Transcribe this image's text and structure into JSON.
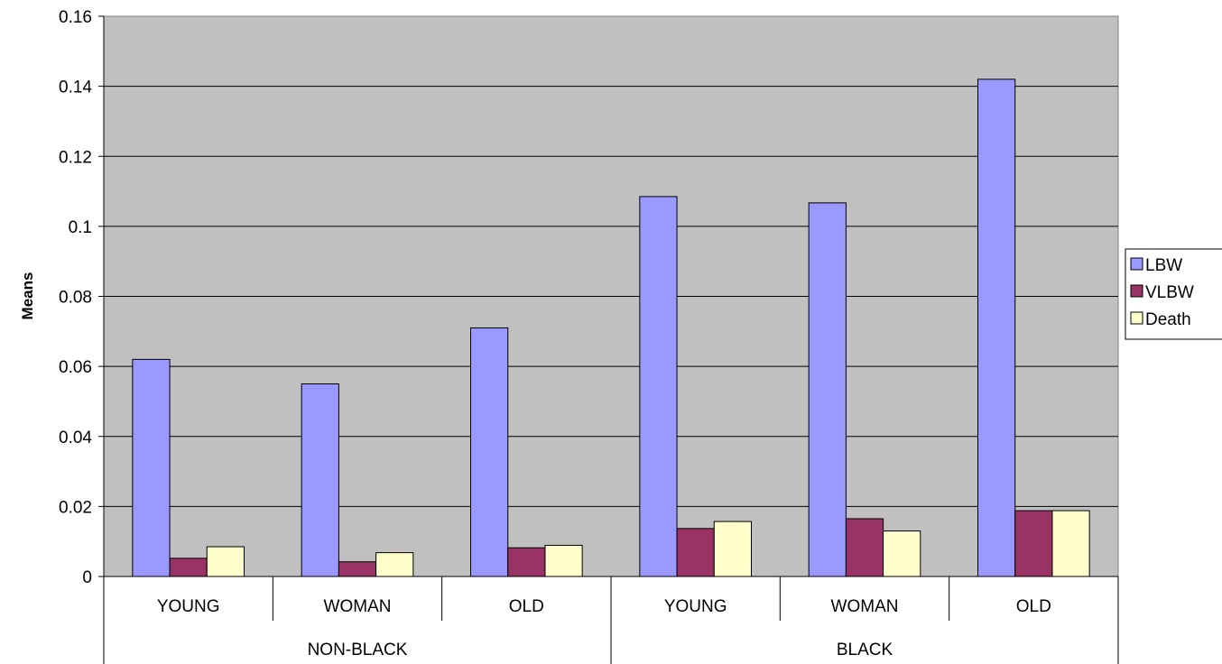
{
  "chart_data": {
    "type": "bar",
    "title": "",
    "xlabel": "",
    "ylabel": "Means",
    "ylim": [
      0,
      0.16
    ],
    "yticks": [
      "0",
      "0.02",
      "0.04",
      "0.06",
      "0.08",
      "0.1",
      "0.12",
      "0.14",
      "0.16"
    ],
    "grid": true,
    "legend_position": "right",
    "groups": [
      {
        "label": "NON-BLACK",
        "categories": [
          "YOUNG",
          "WOMAN",
          "OLD"
        ]
      },
      {
        "label": "BLACK",
        "categories": [
          "YOUNG",
          "WOMAN",
          "OLD"
        ]
      }
    ],
    "categories": [
      "YOUNG",
      "WOMAN",
      "OLD",
      "YOUNG",
      "WOMAN",
      "OLD"
    ],
    "series": [
      {
        "name": "LBW",
        "color": "#9999ff",
        "values": [
          0.062,
          0.055,
          0.071,
          0.1085,
          0.1067,
          0.142
        ]
      },
      {
        "name": "VLBW",
        "color": "#993366",
        "values": [
          0.0052,
          0.0042,
          0.0082,
          0.0137,
          0.0165,
          0.0188
        ]
      },
      {
        "name": "Death",
        "color": "#ffffcc",
        "values": [
          0.0085,
          0.0068,
          0.0089,
          0.0157,
          0.013,
          0.0188
        ]
      }
    ],
    "plot_background": "#c0c0c0"
  }
}
